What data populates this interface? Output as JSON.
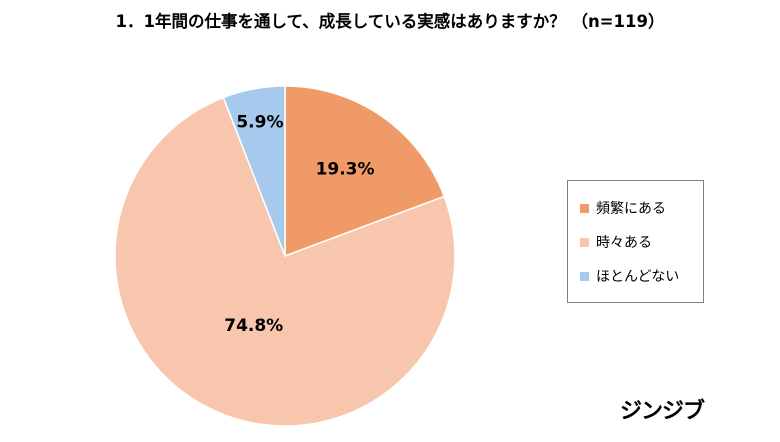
{
  "title": "1．1年間の仕事を通して、成長している実感はありますか？ （n=119）",
  "brand": "ジンジブ",
  "chart_data": {
    "type": "pie",
    "title": "1．1年間の仕事を通して、成長している実感はありますか？ （n=119）",
    "n": 119,
    "slices": [
      {
        "name": "頻繁にある",
        "value": 19.3,
        "label": "19.3%",
        "color": "#f09a67"
      },
      {
        "name": "時々ある",
        "value": 74.8,
        "label": "74.8%",
        "color": "#f7c6ad"
      },
      {
        "name": "ほとんどない",
        "value": 5.9,
        "label": "5.9%",
        "color": "#a7c9ed"
      }
    ],
    "legend_position": "right"
  }
}
